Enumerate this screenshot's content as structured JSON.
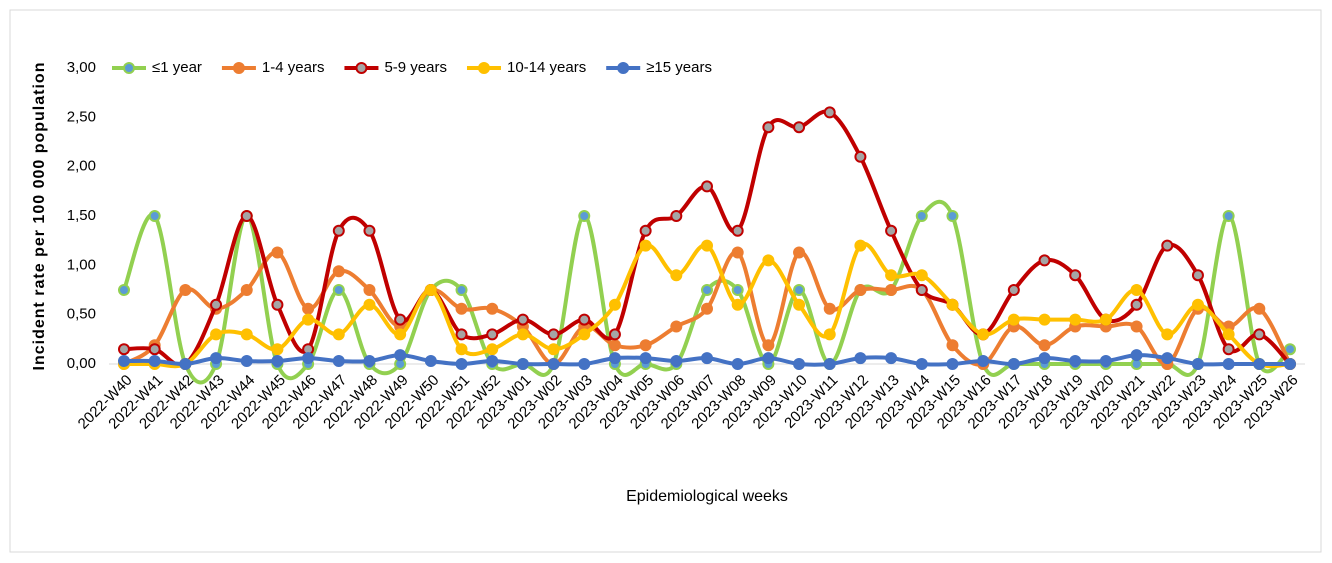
{
  "chart_data": {
    "type": "line",
    "x_label": "Epidemiological weeks",
    "y_label": "Incident rate per 100 000 population",
    "categories": [
      "2022-W40",
      "2022-W41",
      "2022-W42",
      "2022-W43",
      "2022-W44",
      "2022-W45",
      "2022-W46",
      "2022-W47",
      "2022-W48",
      "2022-W49",
      "2022-W50",
      "2022-W51",
      "2022-W52",
      "2023-W01",
      "2023-W02",
      "2023-W03",
      "2023-W04",
      "2023-W05",
      "2023-W06",
      "2023-W07",
      "2023-W08",
      "2023-W09",
      "2023-W10",
      "2023-W11",
      "2023-W12",
      "2023-W13",
      "2023-W14",
      "2023-W15",
      "2023-W16",
      "2023-W17",
      "2023-W18",
      "2023-W19",
      "2023-W20",
      "2023-W21",
      "2023-W22",
      "2023-W23",
      "2023-W24",
      "2023-W25",
      "2023-W26"
    ],
    "series": [
      {
        "name": "≤1 year",
        "color": "#92d050",
        "marker_color": "#5b9bd5",
        "values": [
          0.75,
          1.5,
          0,
          0,
          1.5,
          0,
          0,
          0.75,
          0,
          0,
          0.75,
          0.75,
          0,
          0,
          0,
          1.5,
          0,
          0,
          0,
          0.75,
          0.75,
          0,
          0.75,
          0,
          0.75,
          0.75,
          1.5,
          1.5,
          0,
          0,
          0,
          0,
          0,
          0,
          0,
          0,
          1.5,
          0,
          0.15
        ]
      },
      {
        "name": "1-4 years",
        "color": "#ed7d31",
        "marker_color": "#ed7d31",
        "values": [
          0,
          0.19,
          0.75,
          0.56,
          0.75,
          1.13,
          0.56,
          0.94,
          0.75,
          0.38,
          0.75,
          0.56,
          0.56,
          0.38,
          0,
          0.38,
          0.19,
          0.19,
          0.38,
          0.56,
          1.13,
          0.19,
          1.13,
          0.56,
          0.75,
          0.75,
          0.75,
          0.19,
          0,
          0.38,
          0.19,
          0.38,
          0.38,
          0.38,
          0,
          0.56,
          0.38,
          0.56,
          0
        ]
      },
      {
        "name": "5-9 years",
        "color": "#c00000",
        "marker_color": "#a5a5a5",
        "values": [
          0.15,
          0.15,
          0,
          0.6,
          1.5,
          0.6,
          0.15,
          1.35,
          1.35,
          0.45,
          0.75,
          0.3,
          0.3,
          0.45,
          0.3,
          0.45,
          0.3,
          1.35,
          1.5,
          1.8,
          1.35,
          2.4,
          2.4,
          2.55,
          2.1,
          1.35,
          0.75,
          0.6,
          0.3,
          0.75,
          1.05,
          0.9,
          0.45,
          0.6,
          1.2,
          0.9,
          0.15,
          0.3,
          0
        ]
      },
      {
        "name": "10-14 years",
        "color": "#ffc000",
        "marker_color": "#ffc000",
        "values": [
          0,
          0,
          0,
          0.3,
          0.3,
          0.15,
          0.45,
          0.3,
          0.6,
          0.3,
          0.75,
          0.15,
          0.15,
          0.3,
          0.15,
          0.3,
          0.6,
          1.2,
          0.9,
          1.2,
          0.6,
          1.05,
          0.6,
          0.3,
          1.2,
          0.9,
          0.9,
          0.6,
          0.3,
          0.45,
          0.45,
          0.45,
          0.45,
          0.75,
          0.3,
          0.6,
          0.3,
          0,
          0
        ]
      },
      {
        "name": "≥15 years",
        "color": "#4472c4",
        "marker_color": "#4472c4",
        "values": [
          0.03,
          0.03,
          0,
          0.06,
          0.03,
          0.03,
          0.06,
          0.03,
          0.03,
          0.09,
          0.03,
          0,
          0.03,
          0,
          0,
          0,
          0.06,
          0.06,
          0.03,
          0.06,
          0,
          0.06,
          0,
          0,
          0.06,
          0.06,
          0,
          0,
          0.03,
          0,
          0.06,
          0.03,
          0.03,
          0.09,
          0.06,
          0,
          0,
          0,
          0
        ]
      }
    ],
    "ylim": [
      0,
      3
    ],
    "yticks": [
      {
        "value": 0,
        "label": "0,00"
      },
      {
        "value": 0.5,
        "label": "0,50"
      },
      {
        "value": 1,
        "label": "1,00"
      },
      {
        "value": 1.5,
        "label": "1,50"
      },
      {
        "value": 2,
        "label": "2,00"
      },
      {
        "value": 2.5,
        "label": "2,50"
      },
      {
        "value": 3,
        "label": "3,00"
      }
    ],
    "grid": false,
    "legend": "top"
  }
}
